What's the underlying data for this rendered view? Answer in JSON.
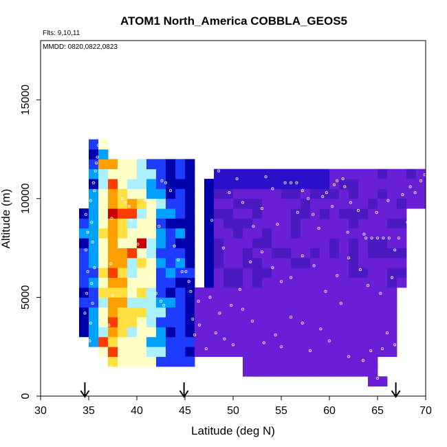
{
  "chart_data": {
    "type": "heatmap",
    "title": "ATOM1 North_America COBBLA_GEOS5",
    "annotations": {
      "flights": "Flts: 9,10,11",
      "dates": "MMDD: 0820,0822,0823"
    },
    "xlabel": "Latitude (deg N)",
    "ylabel": "Altitude (m)",
    "xlim": [
      30,
      70
    ],
    "ylim": [
      0,
      18000
    ],
    "xticks": [
      30,
      35,
      40,
      45,
      50,
      55,
      60,
      65,
      70
    ],
    "yticks": [
      0,
      5000,
      10000,
      15000
    ],
    "grid": false,
    "legend": "none",
    "cell_size": {
      "lat": 1,
      "alt": 500
    },
    "colorscale": [
      "#0000aa",
      "#1e3cff",
      "#00a0ff",
      "#aaf0ff",
      "#ffffc8",
      "#ffe040",
      "#ffa000",
      "#ff3c00",
      "#c80000"
    ],
    "background_colors": {
      "purple": "#6a1fd6",
      "dark_purple": "#4a1ac0",
      "blue": "#2a10c8"
    },
    "vertical_bands": [
      {
        "lat_from": 34,
        "lat_to": 35,
        "alt_from": 3000,
        "alt_to": 9500,
        "level": 1
      },
      {
        "lat_from": 35,
        "lat_to": 36,
        "alt_from": 2500,
        "alt_to": 13000,
        "level": 2
      },
      {
        "lat_from": 36,
        "lat_to": 37,
        "alt_from": 2000,
        "alt_to": 13000,
        "level": 4
      },
      {
        "lat_from": 37,
        "lat_to": 38,
        "alt_from": 1500,
        "alt_to": 12000,
        "level": 6
      },
      {
        "lat_from": 38,
        "lat_to": 39,
        "alt_from": 1500,
        "alt_to": 12000,
        "level": 5
      },
      {
        "lat_from": 39,
        "lat_to": 40,
        "alt_from": 1500,
        "alt_to": 12000,
        "level": 4
      },
      {
        "lat_from": 40,
        "lat_to": 41,
        "alt_from": 1500,
        "alt_to": 12000,
        "level": 4
      },
      {
        "lat_from": 41,
        "lat_to": 42,
        "alt_from": 1500,
        "alt_to": 12000,
        "level": 3
      },
      {
        "lat_from": 42,
        "lat_to": 43,
        "alt_from": 1500,
        "alt_to": 12000,
        "level": 2
      },
      {
        "lat_from": 43,
        "lat_to": 44,
        "alt_from": 1500,
        "alt_to": 12000,
        "level": 1
      },
      {
        "lat_from": 44,
        "lat_to": 45,
        "alt_from": 1500,
        "alt_to": 12000,
        "level": 1
      },
      {
        "lat_from": 45,
        "lat_to": 48,
        "alt_from": 1500,
        "alt_to": 12000,
        "level": 0
      }
    ],
    "hot_spots": [
      {
        "lat": 37,
        "alt": 10500,
        "level": 7
      },
      {
        "lat": 37,
        "alt": 9000,
        "level": 8
      },
      {
        "lat": 38,
        "alt": 9000,
        "level": 7
      },
      {
        "lat": 39,
        "alt": 9500,
        "level": 6
      },
      {
        "lat": 39,
        "alt": 9000,
        "level": 7
      },
      {
        "lat": 40,
        "alt": 7500,
        "level": 8
      },
      {
        "lat": 39,
        "alt": 7000,
        "level": 7
      },
      {
        "lat": 38,
        "alt": 4500,
        "level": 6
      },
      {
        "lat": 36,
        "alt": 2500,
        "level": 7
      },
      {
        "lat": 36,
        "alt": 11500,
        "level": 6
      },
      {
        "lat": 38,
        "alt": 3000,
        "level": 5
      }
    ],
    "low_region": [
      {
        "lat_from": 45,
        "lat_to": 67,
        "alt_from": 2000,
        "alt_to": 5500
      },
      {
        "lat_from": 47,
        "lat_to": 68,
        "alt_from": 5500,
        "alt_to": 11000
      },
      {
        "lat_from": 48,
        "lat_to": 70,
        "alt_from": 9500,
        "alt_to": 11500
      },
      {
        "lat_from": 51,
        "lat_to": 65,
        "alt_from": 1000,
        "alt_to": 2000
      },
      {
        "lat_from": 64,
        "lat_to": 66,
        "alt_from": 500,
        "alt_to": 1000
      }
    ],
    "flight_points": [
      [
        34.6,
        4200
      ],
      [
        34.8,
        5200
      ],
      [
        34.9,
        6300
      ],
      [
        34.7,
        7400
      ],
      [
        34.9,
        8300
      ],
      [
        34.7,
        9200
      ],
      [
        35.1,
        2800
      ],
      [
        35.2,
        3700
      ],
      [
        35.4,
        4700
      ],
      [
        35.3,
        5700
      ],
      [
        35.6,
        6500
      ],
      [
        35.4,
        7800
      ],
      [
        35.3,
        8800
      ],
      [
        35.2,
        9900
      ],
      [
        35.6,
        10400
      ],
      [
        35.5,
        10800
      ],
      [
        35.7,
        11400
      ],
      [
        35.8,
        11800
      ],
      [
        35.9,
        12100
      ],
      [
        36.0,
        12700
      ],
      [
        36.3,
        12750
      ],
      [
        36.6,
        12750
      ],
      [
        37.0,
        12700
      ],
      [
        36.8,
        10200
      ],
      [
        37.4,
        9000
      ],
      [
        37.3,
        6700
      ],
      [
        37.5,
        5100
      ],
      [
        37.1,
        3600
      ],
      [
        37.3,
        1500
      ],
      [
        38.5,
        10000
      ],
      [
        38.8,
        9800
      ],
      [
        39.2,
        9600
      ],
      [
        39.4,
        8900
      ],
      [
        39.7,
        8400
      ],
      [
        40.1,
        7700
      ],
      [
        40.5,
        7200
      ],
      [
        41.0,
        6500
      ],
      [
        41.5,
        5900
      ],
      [
        42.0,
        5200
      ],
      [
        42.5,
        4800
      ],
      [
        42.8,
        4600
      ],
      [
        42.6,
        10900
      ],
      [
        43.0,
        10800
      ],
      [
        43.5,
        10400
      ],
      [
        42.3,
        8600
      ],
      [
        41.8,
        9300
      ],
      [
        40.9,
        9900
      ],
      [
        43.9,
        7600
      ],
      [
        44.3,
        6900
      ],
      [
        44.7,
        6300
      ],
      [
        45.1,
        6300
      ],
      [
        45.4,
        5800
      ],
      [
        45.6,
        5300
      ],
      [
        46.2,
        6500
      ],
      [
        46.8,
        6200
      ],
      [
        47.5,
        11900
      ],
      [
        48.0,
        11900
      ],
      [
        48.5,
        11400
      ],
      [
        47.8,
        8900
      ],
      [
        49.0,
        7500
      ],
      [
        49.6,
        10300
      ],
      [
        50.4,
        11000
      ],
      [
        51.6,
        11600
      ],
      [
        52.0,
        11600
      ],
      [
        51.0,
        9800
      ],
      [
        52.1,
        8600
      ],
      [
        53.0,
        9500
      ],
      [
        53.4,
        11100
      ],
      [
        54.1,
        10500
      ],
      [
        55.4,
        10800
      ],
      [
        56.0,
        10800
      ],
      [
        56.6,
        10800
      ],
      [
        57.2,
        10400
      ],
      [
        57.8,
        10000
      ],
      [
        58.3,
        9200
      ],
      [
        59.3,
        10100
      ],
      [
        59.7,
        10300
      ],
      [
        60.5,
        10700
      ],
      [
        60.8,
        10900
      ],
      [
        61.4,
        11000
      ],
      [
        61.6,
        10600
      ],
      [
        62.2,
        9800
      ],
      [
        63.0,
        9400
      ],
      [
        63.6,
        8200
      ],
      [
        63.8,
        8000
      ],
      [
        64.4,
        8000
      ],
      [
        65.0,
        8000
      ],
      [
        65.6,
        8000
      ],
      [
        66.2,
        8000
      ],
      [
        66.8,
        7400
      ],
      [
        67.2,
        8000
      ],
      [
        68.1,
        8800
      ],
      [
        68.4,
        10600
      ],
      [
        68.9,
        10300
      ],
      [
        69.5,
        10900
      ],
      [
        69.9,
        11200
      ],
      [
        46.0,
        3100
      ],
      [
        46.5,
        3600
      ],
      [
        47.2,
        2400
      ],
      [
        48.2,
        3200
      ],
      [
        49.1,
        2900
      ],
      [
        50.0,
        2600
      ],
      [
        51.0,
        4400
      ],
      [
        52.0,
        3800
      ],
      [
        53.2,
        2700
      ],
      [
        54.4,
        3100
      ],
      [
        55.0,
        2500
      ],
      [
        56.0,
        4000
      ],
      [
        57.2,
        3700
      ],
      [
        58.0,
        2300
      ],
      [
        59.1,
        3400
      ],
      [
        60.0,
        2800
      ],
      [
        61.2,
        4700
      ],
      [
        62.0,
        2000
      ],
      [
        63.5,
        1800
      ],
      [
        64.3,
        2300
      ],
      [
        65.0,
        900
      ],
      [
        65.5,
        2400
      ],
      [
        66.0,
        3200
      ],
      [
        66.8,
        2600
      ],
      [
        67.4,
        3700
      ],
      [
        67.8,
        4200
      ],
      [
        66.5,
        6000
      ],
      [
        65.3,
        5200
      ],
      [
        64.0,
        5600
      ],
      [
        63.2,
        6400
      ],
      [
        62.0,
        7000
      ],
      [
        60.8,
        6100
      ],
      [
        59.6,
        5300
      ],
      [
        58.4,
        6600
      ],
      [
        57.2,
        7100
      ],
      [
        56.0,
        6000
      ],
      [
        55.0,
        5800
      ],
      [
        54.1,
        6500
      ],
      [
        53.0,
        7300
      ],
      [
        51.8,
        6800
      ],
      [
        50.7,
        5400
      ],
      [
        49.8,
        4600
      ],
      [
        48.6,
        4200
      ],
      [
        47.6,
        5000
      ],
      [
        46.4,
        4800
      ],
      [
        45.8,
        3900
      ],
      [
        54.6,
        8700
      ],
      [
        58.9,
        8500
      ],
      [
        60.3,
        9600
      ],
      [
        61.9,
        8300
      ],
      [
        64.9,
        9300
      ],
      [
        66.1,
        9900
      ],
      [
        67.6,
        10200
      ],
      [
        56.7,
        9300
      ]
    ],
    "arrows_at_lat": [
      34.6,
      44.9,
      66.9
    ]
  }
}
